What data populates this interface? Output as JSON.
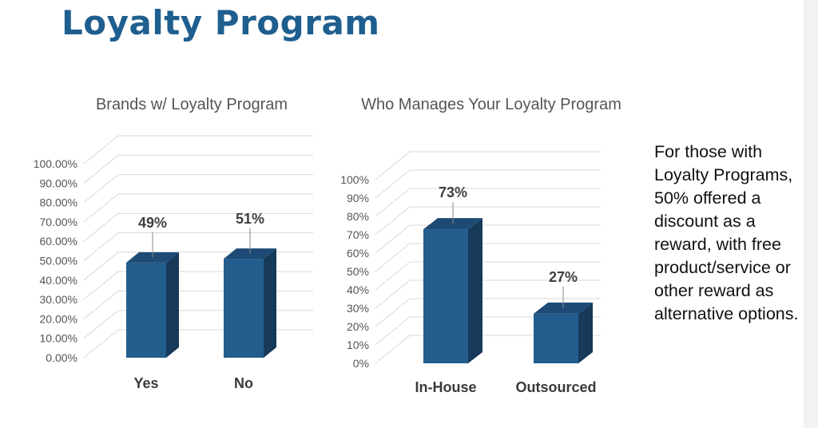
{
  "page": {
    "title": "Loyalty Program"
  },
  "note": "For those with Loyalty Programs, 50% offered a discount as a reward, with free product/service or other reward as alternative options.",
  "colors": {
    "title": "#1f5f8f",
    "bar_front": "#235d8e",
    "bar_side": "#17395a",
    "bar_top": "#1d4b75",
    "grid": "#d9d9d9"
  },
  "chart_data": [
    {
      "type": "bar",
      "title": "Brands w/ Loyalty Program",
      "categories": [
        "Yes",
        "No"
      ],
      "values": [
        0.49,
        0.51
      ],
      "data_labels": [
        "49%",
        "51%"
      ],
      "ylim": [
        0,
        1
      ],
      "yticks": [
        "0.00%",
        "10.00%",
        "20.00%",
        "30.00%",
        "40.00%",
        "50.00%",
        "60.00%",
        "70.00%",
        "80.00%",
        "90.00%",
        "100.00%"
      ],
      "grid": true,
      "style": "3d"
    },
    {
      "type": "bar",
      "title": "Who Manages Your Loyalty Program",
      "categories": [
        "In-House",
        "Outsourced"
      ],
      "values": [
        0.73,
        0.27
      ],
      "data_labels": [
        "73%",
        "27%"
      ],
      "ylim": [
        0,
        1
      ],
      "yticks": [
        "0%",
        "10%",
        "20%",
        "30%",
        "40%",
        "50%",
        "60%",
        "70%",
        "80%",
        "90%",
        "100%"
      ],
      "grid": true,
      "style": "3d"
    }
  ]
}
